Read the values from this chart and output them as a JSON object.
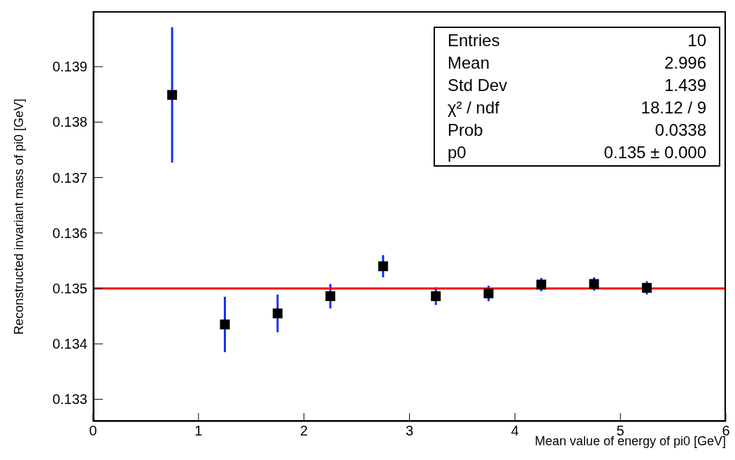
{
  "chart_data": {
    "type": "scatter",
    "xlabel": "Mean value of energy of pi0 [GeV]",
    "ylabel": "Reconstructed invariant mass of pi0 [GeV]",
    "xlim": [
      0,
      6
    ],
    "xticks": [
      0,
      1,
      2,
      3,
      4,
      5,
      6
    ],
    "ylim": [
      0.1326,
      0.14
    ],
    "yticks": [
      0.133,
      0.134,
      0.135,
      0.136,
      0.137,
      0.138,
      0.139
    ],
    "grid": false,
    "legend": false,
    "marker": "square",
    "series": [
      {
        "color": "#000000",
        "x": [
          0.75,
          1.25,
          1.75,
          2.25,
          2.75,
          3.25,
          3.75,
          4.25,
          4.75,
          5.25
        ],
        "values": [
          0.13849,
          0.13435,
          0.13455,
          0.13486,
          0.1354,
          0.13486,
          0.13491,
          0.13507,
          0.13508,
          0.13501
        ],
        "errors": [
          0.00122,
          0.0005,
          0.00034,
          0.00022,
          0.0002,
          0.00016,
          0.00014,
          0.00012,
          0.00012,
          0.00012
        ]
      },
      {
        "type": "line",
        "color": "#ff0000",
        "x": [
          0,
          6
        ],
        "values": [
          0.135,
          0.135
        ],
        "marker": "none"
      }
    ],
    "annotations": [
      "Entries",
      "10",
      "Mean",
      "2.996",
      "Std Dev",
      "1.439",
      "χ² / ndf",
      "18.12 / 9",
      "Prob",
      "0.0338",
      "p0",
      "0.135 ± 0.000"
    ]
  }
}
